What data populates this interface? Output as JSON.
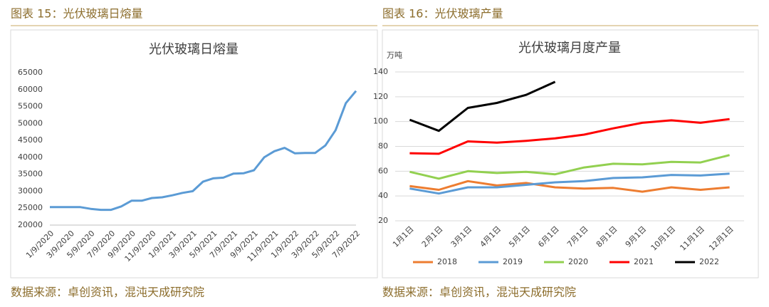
{
  "chart_data": [
    {
      "type": "line",
      "figure_label": "图表 15：光伏玻璃日熔量",
      "source": "数据来源：卓创资讯，混沌天成研究院",
      "title": "光伏玻璃日熔量",
      "categories": [
        "1/9/2020",
        null,
        "3/9/2020",
        null,
        "5/9/2020",
        null,
        "7/9/2020",
        null,
        "9/9/2020",
        null,
        "11/9/2020",
        null,
        "1/9/2021",
        null,
        "3/9/2021",
        null,
        "5/9/2021",
        null,
        "7/9/2021",
        null,
        "9/9/2021",
        null,
        "11/9/2021",
        null,
        "1/9/2022",
        null,
        "3/9/2022",
        null,
        "5/9/2022",
        null,
        "7/9/2022"
      ],
      "series": [
        {
          "name": "日熔量",
          "color": "#5b9bd5",
          "values": [
            25300,
            25300,
            25300,
            25300,
            24800,
            24500,
            24500,
            25500,
            27200,
            27200,
            28000,
            28200,
            28800,
            29500,
            30000,
            32800,
            33800,
            34000,
            35200,
            35300,
            36200,
            40000,
            41800,
            42800,
            41200,
            41300,
            41300,
            43500,
            48000,
            56000,
            59600
          ]
        }
      ],
      "ylim": [
        20000,
        65000
      ],
      "yticks": [
        20000,
        25000,
        30000,
        35000,
        40000,
        45000,
        50000,
        55000,
        60000,
        65000
      ]
    },
    {
      "type": "line",
      "figure_label": "图表 16：光伏玻璃产量",
      "source": "数据来源：卓创资讯，混沌天成研究院",
      "title": "光伏玻璃月度产量",
      "y_label": "万吨",
      "categories": [
        "1月1日",
        "2月1日",
        "3月1日",
        "4月1日",
        "5月1日",
        "6月1日",
        "7月1日",
        "8月1日",
        "9月1日",
        "10月1日",
        "11月1日",
        "12月1日"
      ],
      "series": [
        {
          "name": "2018",
          "color": "#ed7d31",
          "values": [
            48,
            45,
            52,
            48.5,
            50.5,
            47,
            46,
            46.5,
            43.5,
            47,
            45,
            47
          ]
        },
        {
          "name": "2019",
          "color": "#5b9bd5",
          "values": [
            46,
            42,
            47,
            47,
            49,
            51,
            52,
            54.5,
            55,
            57,
            56.5,
            58
          ]
        },
        {
          "name": "2020",
          "color": "#92d050",
          "values": [
            59.5,
            54,
            60,
            58.5,
            59.5,
            57.5,
            63,
            66,
            65.5,
            67.5,
            67,
            73
          ]
        },
        {
          "name": "2021",
          "color": "#ff0000",
          "values": [
            74.5,
            74,
            84,
            83,
            84.5,
            86.5,
            89.5,
            94.5,
            99,
            101,
            99,
            102
          ]
        },
        {
          "name": "2022",
          "color": "#000000",
          "values": [
            101.5,
            92.5,
            111,
            115,
            121.5,
            132,
            null,
            null,
            null,
            null,
            null,
            null
          ]
        }
      ],
      "ylim": [
        20,
        140
      ],
      "yticks": [
        20,
        40,
        60,
        80,
        100,
        120,
        140
      ],
      "grid": true,
      "legend": "bottom"
    }
  ]
}
